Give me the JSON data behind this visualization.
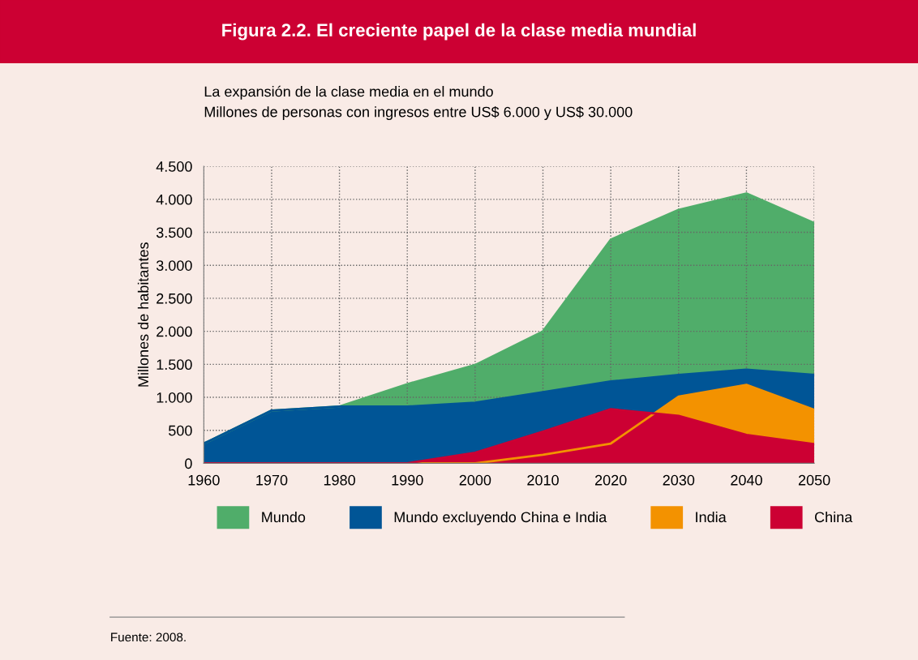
{
  "chart_data": {
    "type": "area",
    "title": "Figura 2.2. El creciente papel de la clase media mundial",
    "subtitle": "La expansión de la clase media en el mundo\nMillones de personas con ingresos entre US$ 6.000 y US$ 30.000",
    "ylabel": "Millones de habitantes",
    "x": [
      1960,
      1970,
      1980,
      1990,
      2000,
      2010,
      2020,
      2030,
      2040,
      2050
    ],
    "series": [
      {
        "name": "Mundo",
        "color": "#50ad6a",
        "values": [
          300,
          800,
          860,
          1200,
          1490,
          2000,
          3390,
          3840,
          4090,
          3640
        ]
      },
      {
        "name": "Mundo excluyendo China e India",
        "color": "#005596",
        "values": [
          300,
          800,
          860,
          860,
          920,
          1080,
          1240,
          1340,
          1420,
          1340
        ]
      },
      {
        "name": "India",
        "color": "#f39200",
        "values": [
          0,
          0,
          0,
          0,
          0,
          130,
          300,
          1010,
          1190,
          810
        ]
      },
      {
        "name": "China",
        "color": "#cc0033",
        "values": [
          0,
          0,
          0,
          0,
          160,
          480,
          820,
          720,
          430,
          290
        ]
      }
    ],
    "xlim": [
      1960,
      2050
    ],
    "xticks": [
      1960,
      1970,
      1980,
      1990,
      2000,
      2010,
      2020,
      2030,
      2040,
      2050
    ],
    "ylim": [
      0,
      4500
    ],
    "yticks": [
      {
        "value": 0,
        "label": "0"
      },
      {
        "value": 500,
        "label": "500"
      },
      {
        "value": 1000,
        "label": "1.000"
      },
      {
        "value": 1500,
        "label": "1.500"
      },
      {
        "value": 2000,
        "label": "2.000"
      },
      {
        "value": 2500,
        "label": "2.500"
      },
      {
        "value": 3000,
        "label": "3.000"
      },
      {
        "value": 3500,
        "label": "3.500"
      },
      {
        "value": 4000,
        "label": "4.000"
      },
      {
        "value": 4500,
        "label": "4.500"
      }
    ],
    "grid": true,
    "legend": "bottom",
    "annotations": [
      "Fuente: 2008."
    ]
  }
}
